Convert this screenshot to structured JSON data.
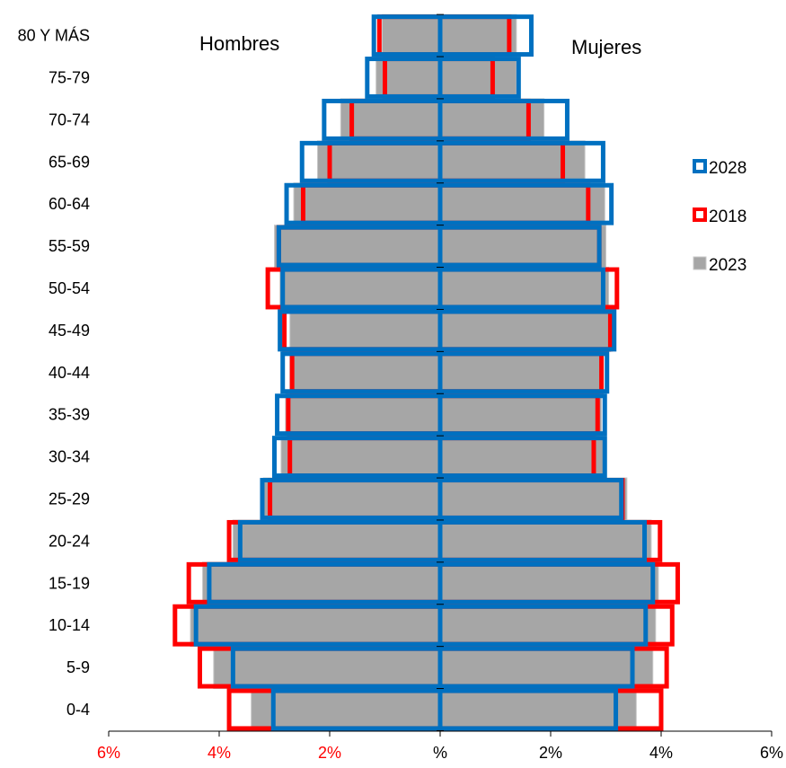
{
  "chart_data": {
    "type": "bar",
    "orientation": "horizontal-pyramid",
    "side_labels": {
      "left": "Hombres",
      "right": "Mujeres"
    },
    "categories": [
      "0-4",
      "5-9",
      "10-14",
      "15-19",
      "20-24",
      "25-29",
      "30-34",
      "35-39",
      "40-44",
      "45-49",
      "50-54",
      "55-59",
      "60-64",
      "65-69",
      "70-74",
      "75-79",
      "80 Y MÁS"
    ],
    "x_ticks": [
      {
        "value": -6,
        "label": "6%",
        "color": "#ff0000"
      },
      {
        "value": -4,
        "label": "4%",
        "color": "#ff0000"
      },
      {
        "value": -2,
        "label": "2%",
        "color": "#ff0000"
      },
      {
        "value": 0,
        "label": "%",
        "color": "#000000"
      },
      {
        "value": 2,
        "label": "2%",
        "color": "#000000"
      },
      {
        "value": 4,
        "label": "4%",
        "color": "#000000"
      },
      {
        "value": 6,
        "label": "6%",
        "color": "#000000"
      }
    ],
    "xlim": [
      -6,
      6
    ],
    "legend_position": "right",
    "series": [
      {
        "name": "2023",
        "style": "fill",
        "color": "#a6a6a6",
        "men": [
          3.42,
          4.1,
          4.52,
          4.3,
          3.75,
          3.2,
          2.88,
          2.8,
          2.72,
          2.72,
          2.9,
          3.0,
          2.65,
          2.22,
          1.8,
          1.16,
          1.05
        ],
        "women": [
          3.55,
          3.85,
          3.9,
          3.95,
          3.82,
          3.38,
          2.98,
          2.92,
          2.95,
          3.08,
          3.05,
          3.0,
          2.98,
          2.62,
          1.88,
          1.38,
          1.38
        ]
      },
      {
        "name": "2018",
        "style": "outline",
        "color": "#ff0000",
        "men": [
          3.82,
          4.35,
          4.8,
          4.55,
          3.82,
          3.08,
          2.72,
          2.75,
          2.68,
          2.82,
          3.12,
          2.92,
          2.48,
          2.0,
          1.6,
          1.0,
          1.1
        ],
        "women": [
          4.0,
          4.1,
          4.2,
          4.3,
          3.98,
          3.3,
          2.78,
          2.85,
          2.92,
          3.08,
          3.2,
          2.88,
          2.68,
          2.22,
          1.6,
          0.95,
          1.25
        ]
      },
      {
        "name": "2028",
        "style": "outline",
        "color": "#0070c0",
        "men": [
          3.02,
          3.75,
          4.42,
          4.18,
          3.62,
          3.22,
          3.0,
          2.95,
          2.85,
          2.9,
          2.85,
          2.92,
          2.78,
          2.5,
          2.1,
          1.32,
          1.2
        ],
        "women": [
          3.18,
          3.48,
          3.72,
          3.85,
          3.7,
          3.28,
          2.98,
          2.98,
          3.02,
          3.15,
          2.95,
          2.88,
          3.1,
          2.95,
          2.3,
          1.42,
          1.65
        ]
      }
    ]
  }
}
